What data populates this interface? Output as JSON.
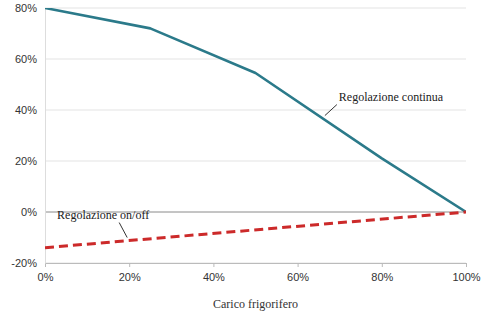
{
  "chart_data": {
    "type": "line",
    "x_label": "Carico frigorifero",
    "xlim": [
      0,
      100
    ],
    "xticks": [
      {
        "value": 0,
        "label": "0%"
      },
      {
        "value": 20,
        "label": "20%"
      },
      {
        "value": 40,
        "label": "40%"
      },
      {
        "value": 60,
        "label": "60%"
      },
      {
        "value": 80,
        "label": "80%"
      },
      {
        "value": 100,
        "label": "100%"
      }
    ],
    "ylim": [
      -20,
      80
    ],
    "yticks": [
      {
        "value": -20,
        "label": "-20%"
      },
      {
        "value": 0,
        "label": "0%"
      },
      {
        "value": 20,
        "label": "20%"
      },
      {
        "value": 40,
        "label": "40%"
      },
      {
        "value": 60,
        "label": "60%"
      },
      {
        "value": 80,
        "label": "80%"
      }
    ],
    "grid": true,
    "series": [
      {
        "name": "Regolazione continua",
        "color": "#2b7a8a",
        "line_style": "solid",
        "x": [
          0,
          25,
          50,
          80,
          100
        ],
        "values": [
          80,
          72,
          54.5,
          21,
          0
        ]
      },
      {
        "name": "Regolazione on/off",
        "color": "#cc2a2a",
        "line_style": "dashed",
        "x": [
          0,
          100
        ],
        "values": [
          -14,
          0
        ]
      }
    ]
  }
}
